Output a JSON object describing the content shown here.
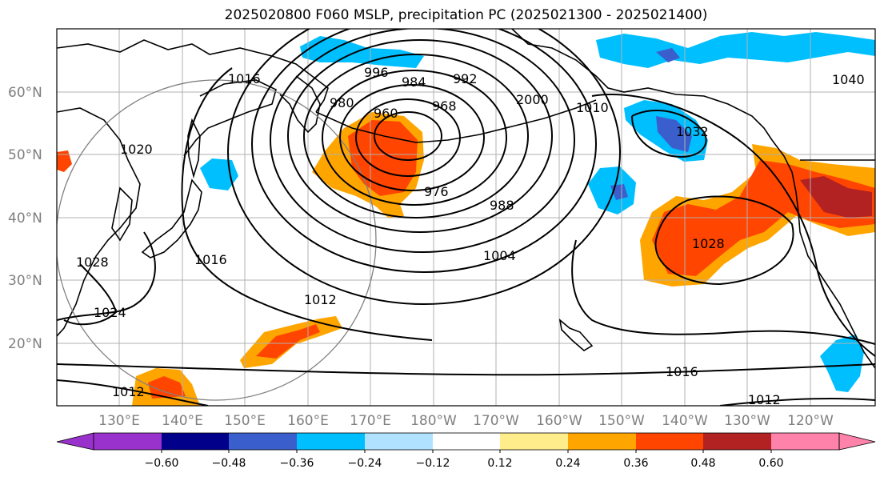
{
  "title": "2025020800 F060 MSLP, precipitation PC (2025021300 - 2025021400)",
  "lat_labels": [
    "60°N",
    "50°N",
    "40°N",
    "30°N",
    "20°N"
  ],
  "lon_labels": [
    "130°E",
    "140°E",
    "150°E",
    "160°E",
    "170°E",
    "180°W",
    "170°W",
    "160°W",
    "150°W",
    "140°W",
    "130°W",
    "120°W"
  ],
  "contour_labels": [
    "1016",
    "996",
    "984",
    "992",
    "980",
    "960",
    "968",
    "2000",
    "1010",
    "1020",
    "1032",
    "1040",
    "976",
    "988",
    "1004",
    "1028",
    "1028",
    "1016",
    "1024",
    "1012",
    "1016",
    "1012",
    "1012"
  ],
  "colorbar": {
    "ticks": [
      "−0.60",
      "−0.48",
      "−0.36",
      "−0.24",
      "−0.12",
      "0.12",
      "0.24",
      "0.36",
      "0.48",
      "0.60"
    ],
    "colors": [
      "#9932cc",
      "#00008b",
      "#3a5fcd",
      "#00bfff",
      "#b0e2ff",
      "#ffffff",
      "#ffec8b",
      "#ffa500",
      "#ff4500",
      "#b22222",
      "#ff82ab"
    ]
  },
  "colors": {
    "grid": "#b0b0b0",
    "coast": "#000000",
    "axis_label": "#7f7f7f"
  }
}
